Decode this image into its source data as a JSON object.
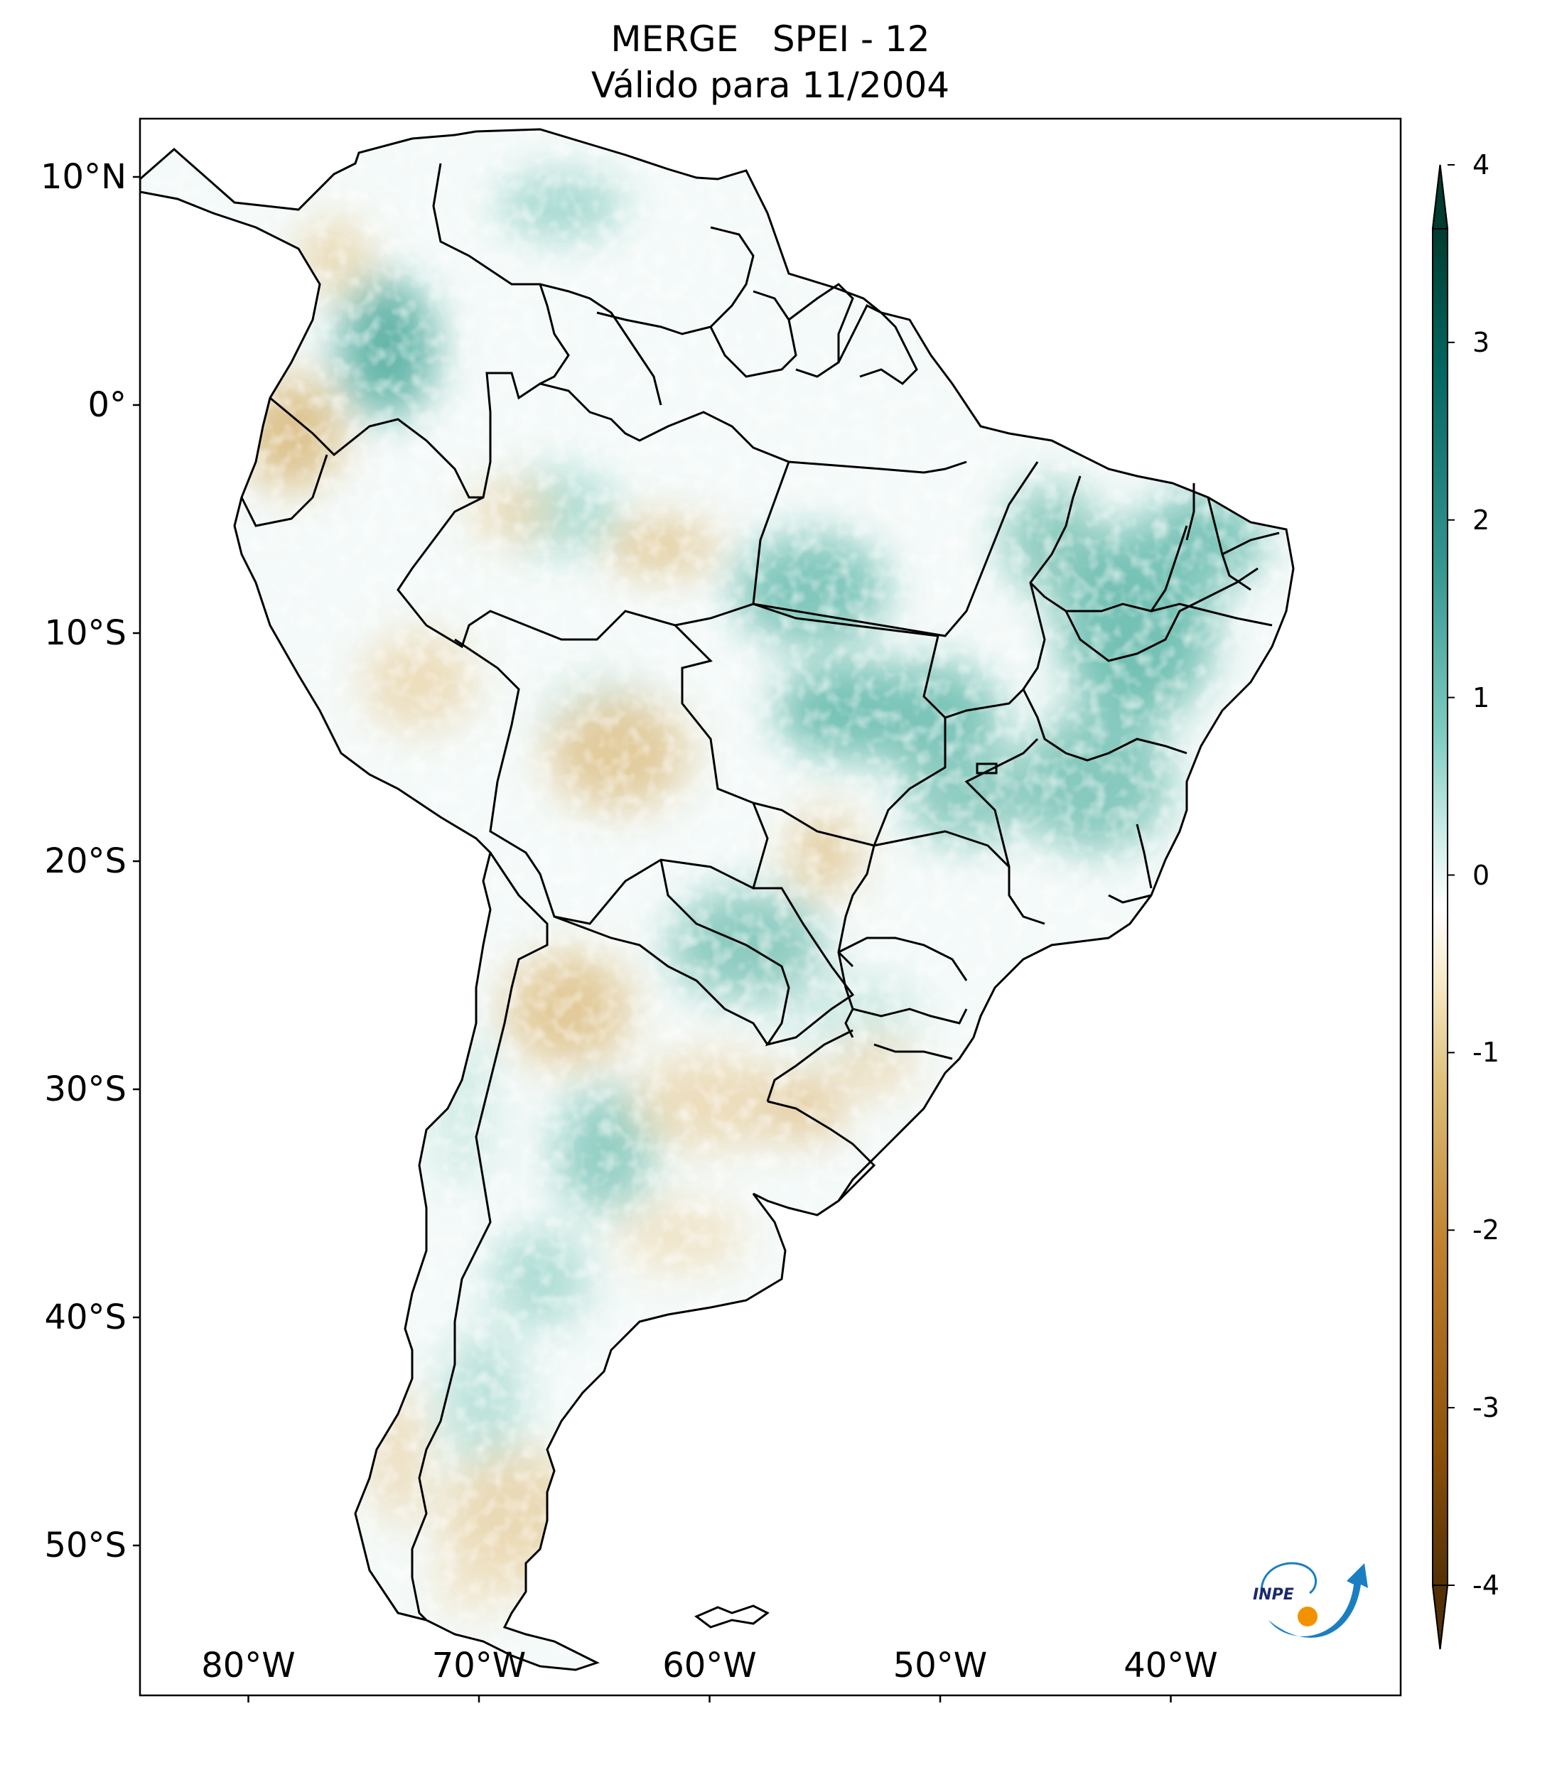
{
  "title": {
    "line1": "MERGE   SPEI - 12",
    "line2": "Válido para 11/2004"
  },
  "axes": {
    "lat_labels": [
      {
        "text": "10°N",
        "value": 10
      },
      {
        "text": "0°",
        "value": 0
      },
      {
        "text": "10°S",
        "value": -10
      },
      {
        "text": "20°S",
        "value": -20
      },
      {
        "text": "30°S",
        "value": -30
      },
      {
        "text": "40°S",
        "value": -40
      },
      {
        "text": "50°S",
        "value": -50
      }
    ],
    "lon_labels": [
      {
        "text": "80°W",
        "value": -80
      },
      {
        "text": "70°W",
        "value": -70
      },
      {
        "text": "60°W",
        "value": -60
      },
      {
        "text": "50°W",
        "value": -50
      },
      {
        "text": "40°W",
        "value": -40
      }
    ],
    "lon_range": [
      -85,
      -30
    ],
    "lat_range": [
      -56,
      13
    ]
  },
  "colorbar": {
    "ticks": [
      {
        "text": "4",
        "value": 4
      },
      {
        "text": "3",
        "value": 3
      },
      {
        "text": "2",
        "value": 2
      },
      {
        "text": "1",
        "value": 1
      },
      {
        "text": "0",
        "value": 0
      },
      {
        "text": "-1",
        "value": -1
      },
      {
        "text": "-2",
        "value": -2
      },
      {
        "text": "-3",
        "value": -3
      },
      {
        "text": "-4",
        "value": -4
      }
    ],
    "range": [
      -4,
      4
    ],
    "extend": "both",
    "colormap": "BrBG",
    "colors": [
      "#543005",
      "#8c510a",
      "#bf812d",
      "#dfc27d",
      "#f6e8c3",
      "#ffffff",
      "#c7eae5",
      "#80cdc1",
      "#35978f",
      "#01665e",
      "#003c30"
    ]
  },
  "map": {
    "ocean_color": "#ffffff",
    "border_color": "#000000"
  },
  "logo": {
    "text": "INPE",
    "blue": "#1a7fc1",
    "orange": "#f39200"
  }
}
